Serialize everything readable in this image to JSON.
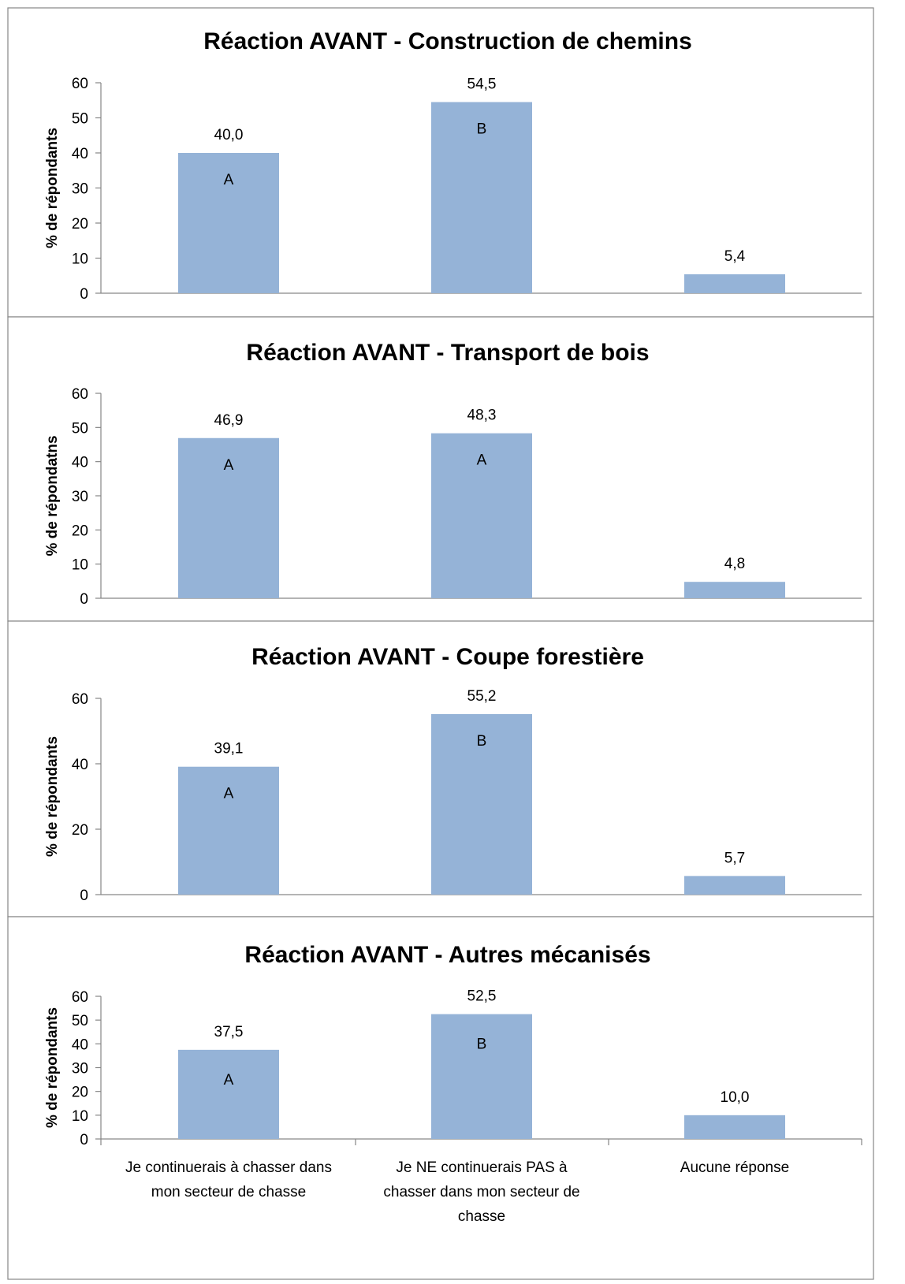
{
  "chart_data": [
    {
      "type": "bar",
      "title": "Réaction AVANT - Construction de chemins",
      "ylabel": "% de répondants",
      "ylim": [
        0,
        60
      ],
      "yticks": [
        0,
        10,
        20,
        30,
        40,
        50,
        60
      ],
      "categories": [
        "Je continuerais à chasser dans mon secteur de chasse",
        "Je NE continuerais PAS à chasser dans mon secteur de chasse",
        "Aucune réponse"
      ],
      "values": [
        40.0,
        54.5,
        5.4
      ],
      "value_labels": [
        "40,0",
        "54,5",
        "5,4"
      ],
      "bar_letters": [
        "A",
        "B",
        ""
      ],
      "show_category_labels": false,
      "bar_color": "#95b3d7"
    },
    {
      "type": "bar",
      "title": "Réaction AVANT - Transport de bois",
      "ylabel": "% de répondatns",
      "ylim": [
        0,
        60
      ],
      "yticks": [
        0,
        10,
        20,
        30,
        40,
        50,
        60
      ],
      "categories": [
        "Je continuerais à chasser dans mon secteur de chasse",
        "Je NE continuerais PAS à chasser dans mon secteur de chasse",
        "Aucune réponse"
      ],
      "values": [
        46.9,
        48.3,
        4.8
      ],
      "value_labels": [
        "46,9",
        "48,3",
        "4,8"
      ],
      "bar_letters": [
        "A",
        "A",
        ""
      ],
      "show_category_labels": false,
      "bar_color": "#95b3d7"
    },
    {
      "type": "bar",
      "title": "Réaction AVANT - Coupe forestière",
      "ylabel": "% de répondants",
      "ylim": [
        0,
        60
      ],
      "yticks": [
        0,
        20,
        40,
        60
      ],
      "categories": [
        "Je continuerais à chasser dans mon secteur de chasse",
        "Je NE continuerais PAS à chasser dans mon secteur de chasse",
        "Aucune réponse"
      ],
      "values": [
        39.1,
        55.2,
        5.7
      ],
      "value_labels": [
        "39,1",
        "55,2",
        "5,7"
      ],
      "bar_letters": [
        "A",
        "B",
        ""
      ],
      "show_category_labels": false,
      "bar_color": "#95b3d7"
    },
    {
      "type": "bar",
      "title": "Réaction AVANT - Autres mécanisés",
      "ylabel": "% de répondants",
      "ylim": [
        0,
        60
      ],
      "yticks": [
        0,
        10,
        20,
        30,
        40,
        50,
        60
      ],
      "categories": [
        "Je continuerais à chasser dans mon secteur de chasse",
        "Je NE continuerais PAS à chasser dans mon secteur de chasse",
        "Aucune réponse"
      ],
      "category_label_lines": [
        [
          "Je continuerais à chasser dans",
          "mon secteur de chasse"
        ],
        [
          "Je NE continuerais PAS à",
          "chasser dans mon secteur de",
          "chasse"
        ],
        [
          "Aucune réponse"
        ]
      ],
      "values": [
        37.5,
        52.5,
        10.0
      ],
      "value_labels": [
        "37,5",
        "52,5",
        "10,0"
      ],
      "bar_letters": [
        "A",
        "B",
        ""
      ],
      "show_category_labels": true,
      "bar_color": "#95b3d7"
    }
  ]
}
